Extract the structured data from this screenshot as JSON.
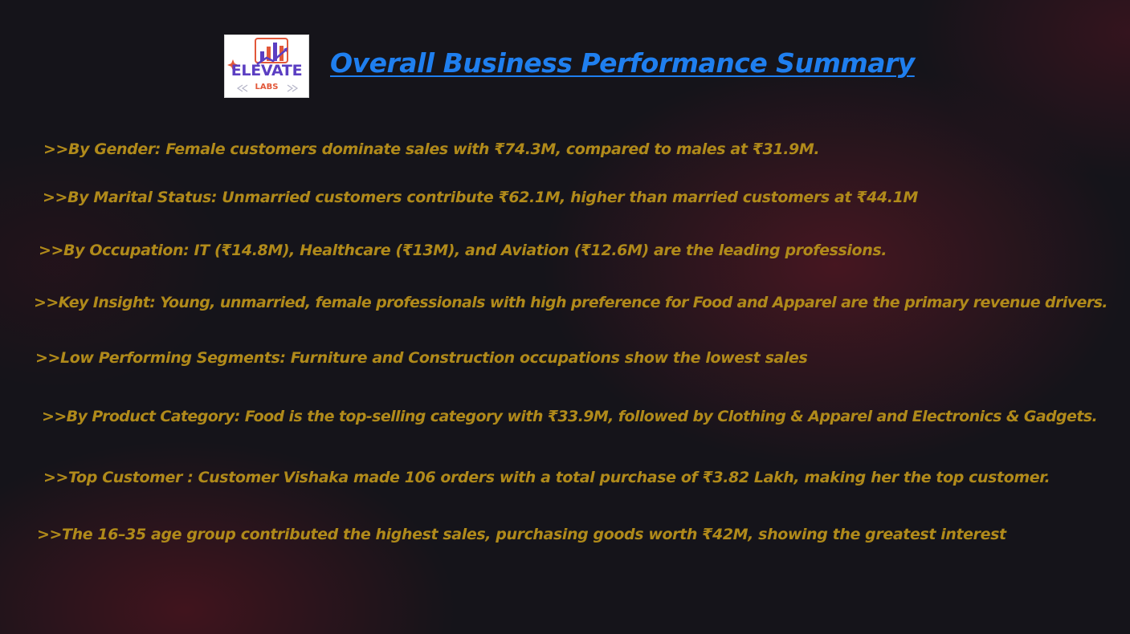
{
  "logo": {
    "word": "ELEVATE",
    "sub": "LABS"
  },
  "title": "Overall Business Performance Summary",
  "points": [
    ">>By Gender: Female customers dominate sales with ₹74.3M, compared to males at ₹31.9M.",
    ">>By Marital Status: Unmarried customers contribute ₹62.1M, higher than married customers at ₹44.1M",
    ">>By Occupation: IT (₹14.8M), Healthcare (₹13M), and Aviation (₹12.6M) are the leading professions.",
    ">>Key Insight: Young, unmarried, female professionals with high preference for Food and Apparel are the primary revenue drivers.",
    ">>Low Performing Segments: Furniture and Construction occupations show the lowest sales",
    ">>By Product Category: Food is the top-selling category with ₹33.9M, followed by Clothing & Apparel and Electronics & Gadgets.",
    ">>Top Customer : Customer Vishaka made 106 orders with a total purchase of ₹3.82 Lakh, making her the top customer.",
    ">>The 16–35 age group contributed the highest sales, purchasing goods worth ₹42M, showing the greatest interest"
  ],
  "colors": {
    "title": "#1f7fef",
    "text": "#b08a1a",
    "logo_purple": "#5b3ec2",
    "logo_orange": "#e2583a"
  }
}
